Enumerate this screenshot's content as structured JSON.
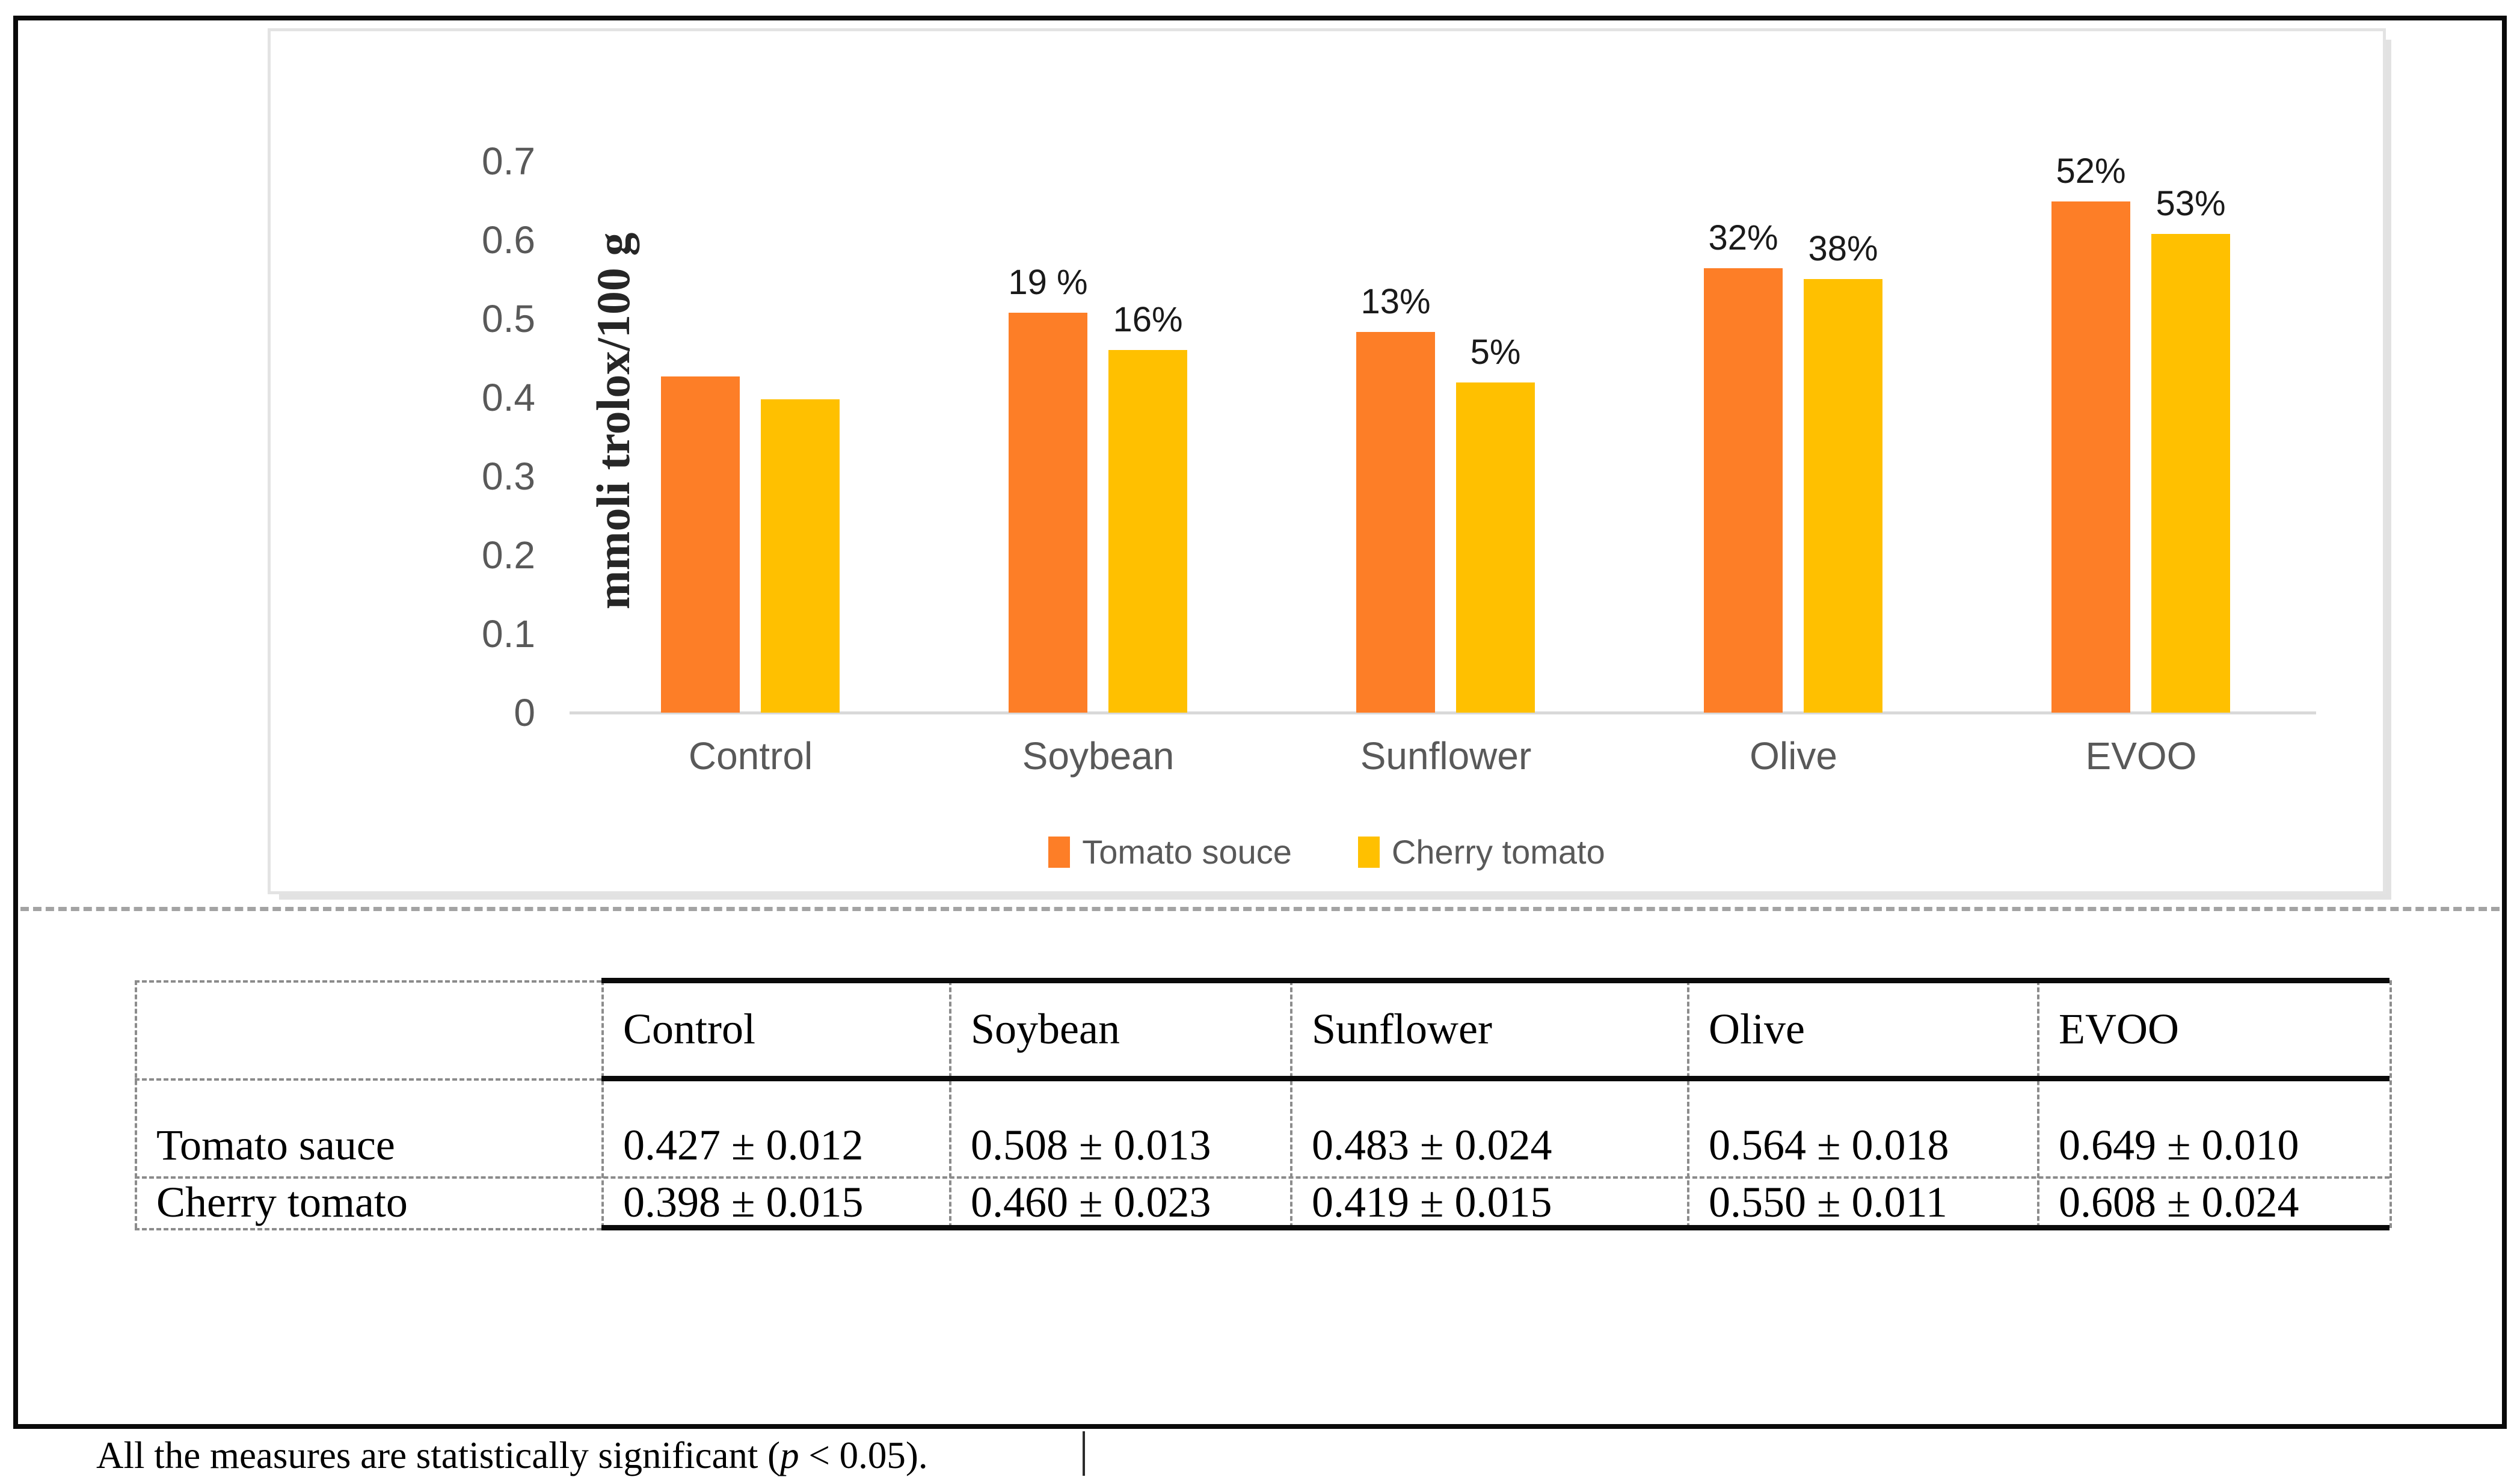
{
  "chart_data": {
    "type": "bar",
    "categories": [
      "Control",
      "Soybean",
      "Sunflower",
      "Olive",
      "EVOO"
    ],
    "series": [
      {
        "name": "Tomato souce",
        "color": "#FD7E27",
        "values": [
          0.427,
          0.508,
          0.483,
          0.564,
          0.649
        ],
        "bar_labels": [
          "",
          "19 %",
          "13%",
          "32%",
          "52%"
        ]
      },
      {
        "name": "Cherry tomato",
        "color": "#FFC000",
        "values": [
          0.398,
          0.46,
          0.419,
          0.55,
          0.608
        ],
        "bar_labels": [
          "",
          "16%",
          "5%",
          "38%",
          "53%"
        ]
      }
    ],
    "title": "",
    "xlabel": "",
    "ylabel": "mmoli trolox/100 g",
    "ylim": [
      0,
      0.7
    ],
    "yticks": [
      "0.7",
      "0.6",
      "0.5",
      "0.4",
      "0.3",
      "0.2",
      "0.1",
      "0"
    ],
    "grid": false,
    "legend_position": "bottom"
  },
  "table": {
    "columns": [
      "",
      "Control",
      "Soybean",
      "Sunflower",
      "Olive",
      "EVOO"
    ],
    "rows": [
      {
        "label": "Tomato sauce",
        "values": [
          "0.427 ± 0.012",
          "0.508 ± 0.013",
          "0.483 ± 0.024",
          "0.564 ± 0.018",
          "0.649 ± 0.010"
        ]
      },
      {
        "label": "Cherry tomato",
        "values": [
          "0.398 ± 0.015",
          "0.460 ± 0.023",
          "0.419 ± 0.015",
          "0.550 ± 0.011",
          "0.608 ± 0.024"
        ]
      }
    ]
  },
  "caption": {
    "prefix": "All the measures are statistically significant (",
    "italic": "p",
    "suffix": " < 0.05)."
  },
  "colors": {
    "series_orange": "#FD7E27",
    "series_yellow": "#FFC000",
    "axis_text": "#595959",
    "axis_line": "#d9d9d9",
    "frame": "#0a0a0a",
    "chart_border": "#e3e3e3",
    "dashed_border": "#8c8c8c"
  }
}
